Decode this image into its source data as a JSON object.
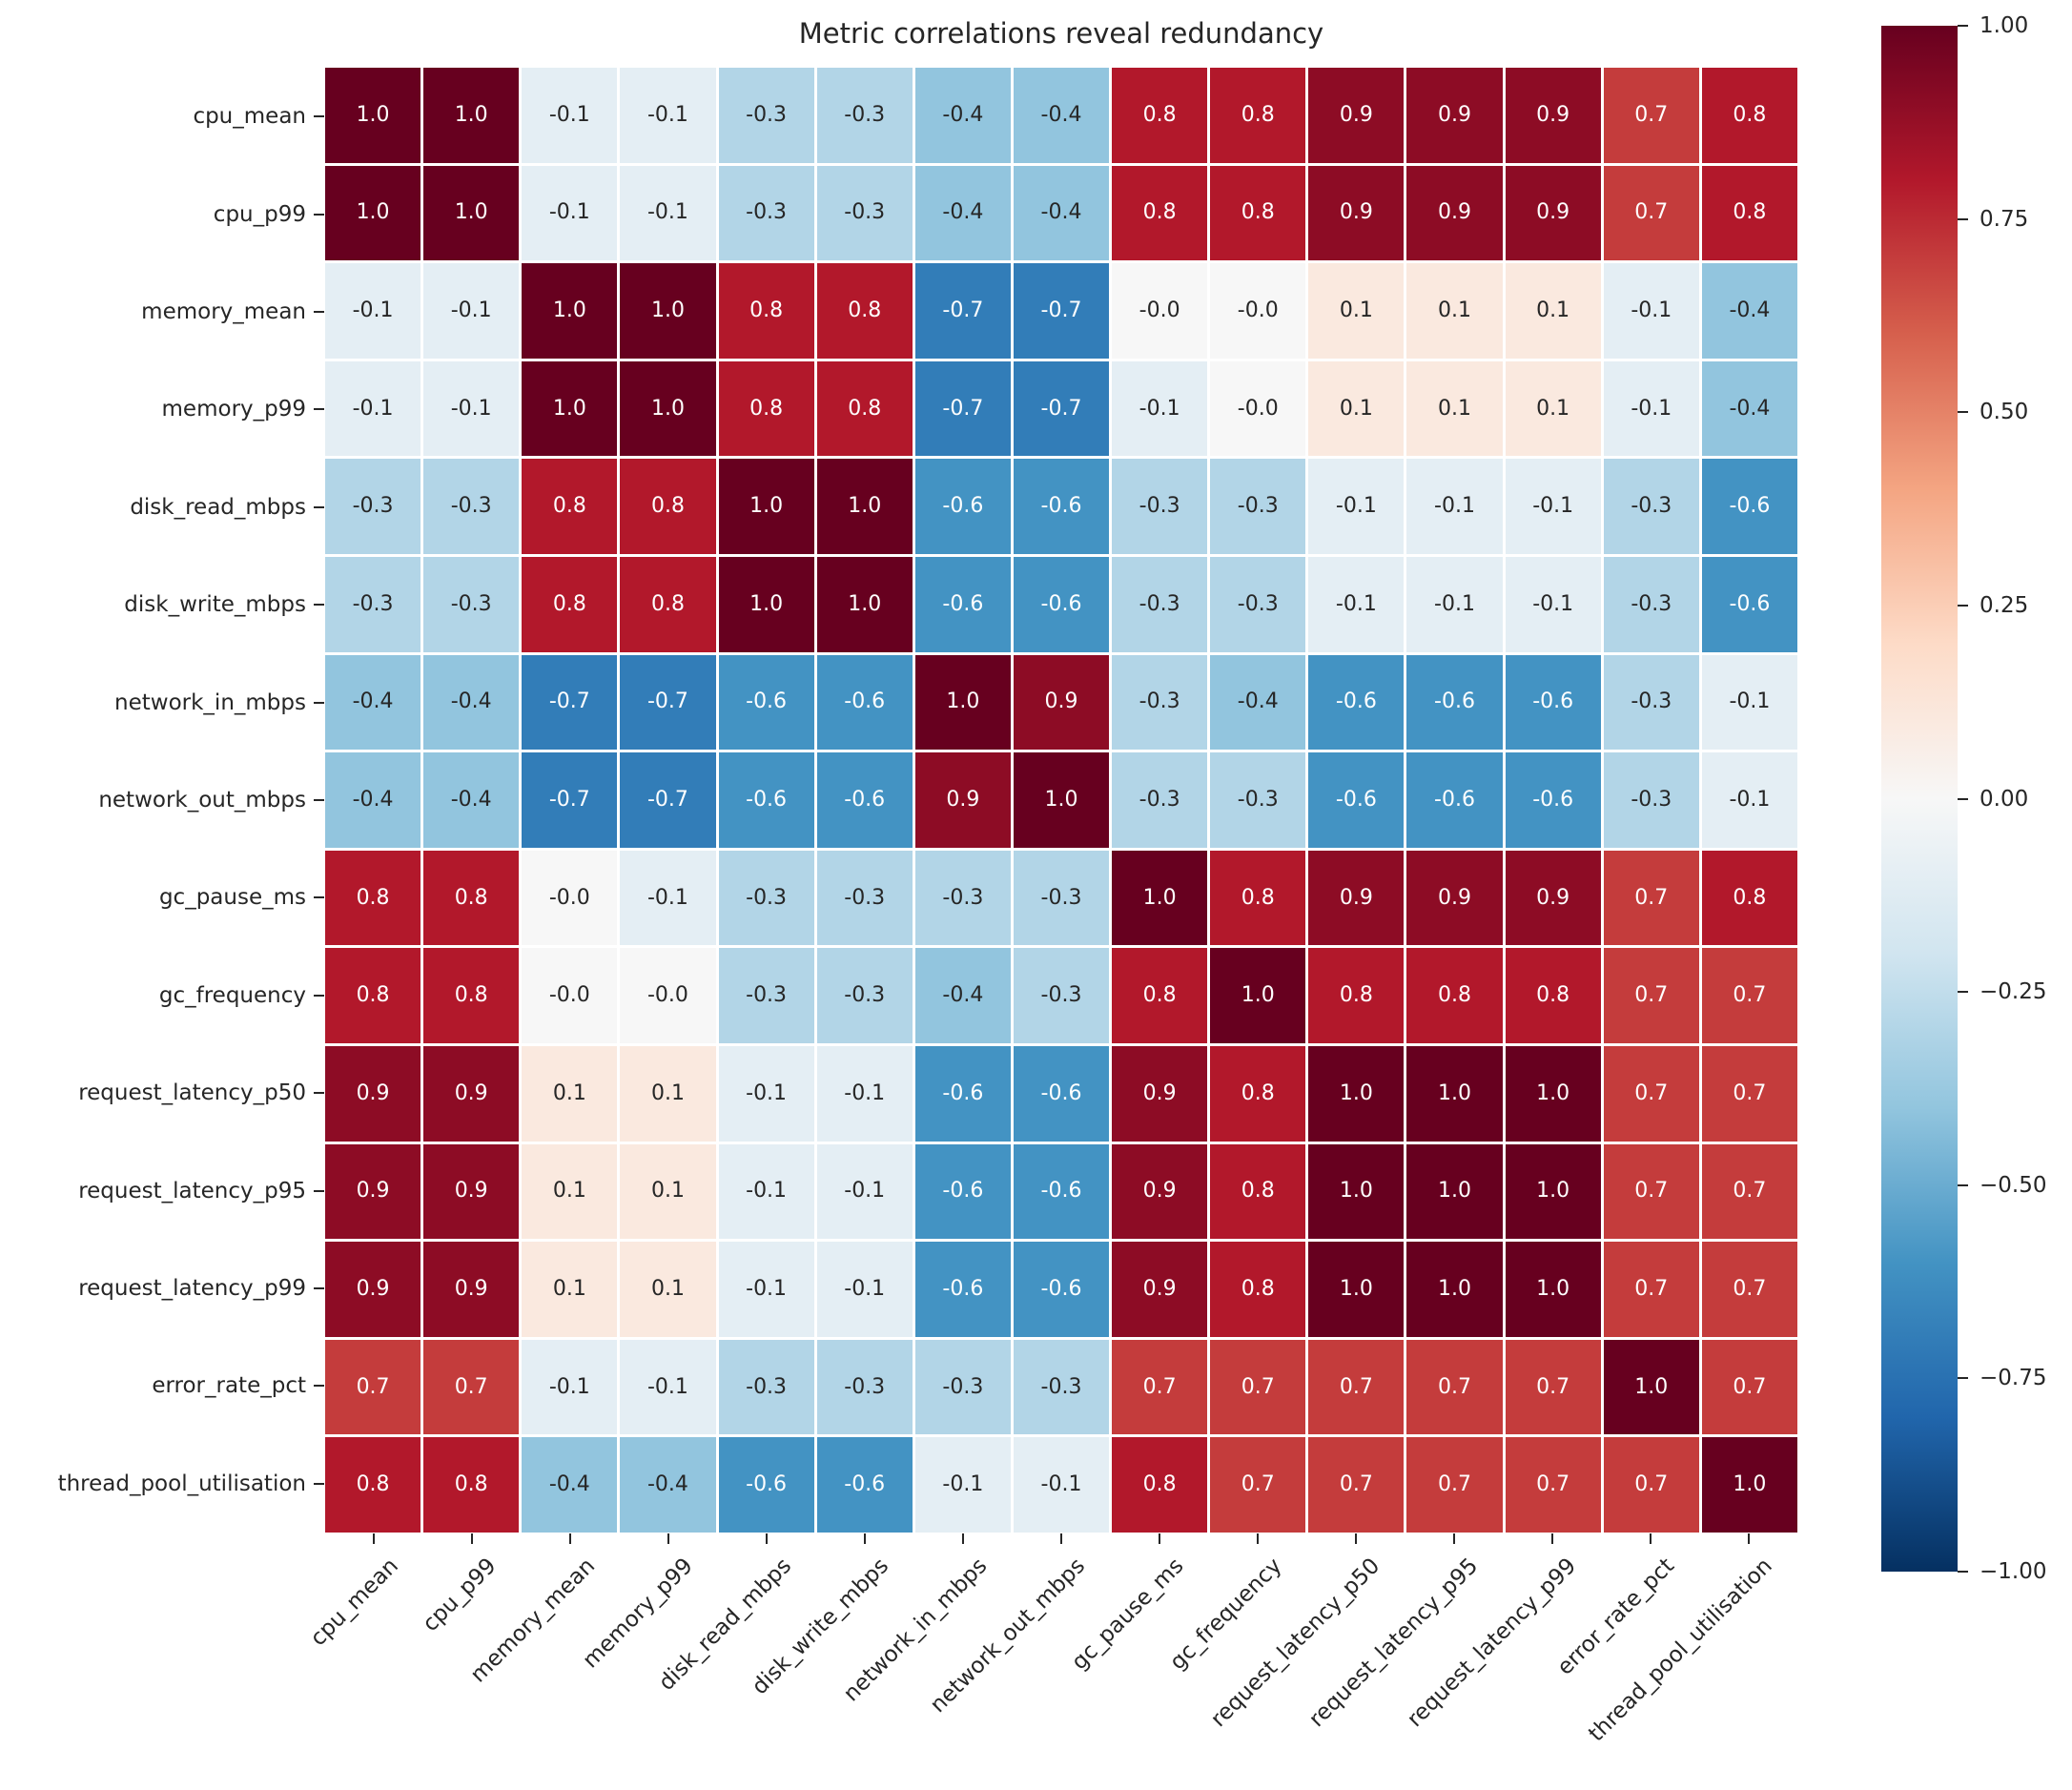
{
  "title": "Metric correlations reveal redundancy",
  "chart_data": {
    "type": "heatmap",
    "title": "Metric correlations reveal redundancy",
    "labels": [
      "cpu_mean",
      "cpu_p99",
      "memory_mean",
      "memory_p99",
      "disk_read_mbps",
      "disk_write_mbps",
      "network_in_mbps",
      "network_out_mbps",
      "gc_pause_ms",
      "gc_frequency",
      "request_latency_p50",
      "request_latency_p95",
      "request_latency_p99",
      "error_rate_pct",
      "thread_pool_utilisation"
    ],
    "matrix": [
      [
        "1.0",
        "1.0",
        "-0.1",
        "-0.1",
        "-0.3",
        "-0.3",
        "-0.4",
        "-0.4",
        "0.8",
        "0.8",
        "0.9",
        "0.9",
        "0.9",
        "0.7",
        "0.8"
      ],
      [
        "1.0",
        "1.0",
        "-0.1",
        "-0.1",
        "-0.3",
        "-0.3",
        "-0.4",
        "-0.4",
        "0.8",
        "0.8",
        "0.9",
        "0.9",
        "0.9",
        "0.7",
        "0.8"
      ],
      [
        "-0.1",
        "-0.1",
        "1.0",
        "1.0",
        "0.8",
        "0.8",
        "-0.7",
        "-0.7",
        "-0.0",
        "-0.0",
        "0.1",
        "0.1",
        "0.1",
        "-0.1",
        "-0.4"
      ],
      [
        "-0.1",
        "-0.1",
        "1.0",
        "1.0",
        "0.8",
        "0.8",
        "-0.7",
        "-0.7",
        "-0.1",
        "-0.0",
        "0.1",
        "0.1",
        "0.1",
        "-0.1",
        "-0.4"
      ],
      [
        "-0.3",
        "-0.3",
        "0.8",
        "0.8",
        "1.0",
        "1.0",
        "-0.6",
        "-0.6",
        "-0.3",
        "-0.3",
        "-0.1",
        "-0.1",
        "-0.1",
        "-0.3",
        "-0.6"
      ],
      [
        "-0.3",
        "-0.3",
        "0.8",
        "0.8",
        "1.0",
        "1.0",
        "-0.6",
        "-0.6",
        "-0.3",
        "-0.3",
        "-0.1",
        "-0.1",
        "-0.1",
        "-0.3",
        "-0.6"
      ],
      [
        "-0.4",
        "-0.4",
        "-0.7",
        "-0.7",
        "-0.6",
        "-0.6",
        "1.0",
        "0.9",
        "-0.3",
        "-0.4",
        "-0.6",
        "-0.6",
        "-0.6",
        "-0.3",
        "-0.1"
      ],
      [
        "-0.4",
        "-0.4",
        "-0.7",
        "-0.7",
        "-0.6",
        "-0.6",
        "0.9",
        "1.0",
        "-0.3",
        "-0.3",
        "-0.6",
        "-0.6",
        "-0.6",
        "-0.3",
        "-0.1"
      ],
      [
        "0.8",
        "0.8",
        "-0.0",
        "-0.1",
        "-0.3",
        "-0.3",
        "-0.3",
        "-0.3",
        "1.0",
        "0.8",
        "0.9",
        "0.9",
        "0.9",
        "0.7",
        "0.8"
      ],
      [
        "0.8",
        "0.8",
        "-0.0",
        "-0.0",
        "-0.3",
        "-0.3",
        "-0.4",
        "-0.3",
        "0.8",
        "1.0",
        "0.8",
        "0.8",
        "0.8",
        "0.7",
        "0.7"
      ],
      [
        "0.9",
        "0.9",
        "0.1",
        "0.1",
        "-0.1",
        "-0.1",
        "-0.6",
        "-0.6",
        "0.9",
        "0.8",
        "1.0",
        "1.0",
        "1.0",
        "0.7",
        "0.7"
      ],
      [
        "0.9",
        "0.9",
        "0.1",
        "0.1",
        "-0.1",
        "-0.1",
        "-0.6",
        "-0.6",
        "0.9",
        "0.8",
        "1.0",
        "1.0",
        "1.0",
        "0.7",
        "0.7"
      ],
      [
        "0.9",
        "0.9",
        "0.1",
        "0.1",
        "-0.1",
        "-0.1",
        "-0.6",
        "-0.6",
        "0.9",
        "0.8",
        "1.0",
        "1.0",
        "1.0",
        "0.7",
        "0.7"
      ],
      [
        "0.7",
        "0.7",
        "-0.1",
        "-0.1",
        "-0.3",
        "-0.3",
        "-0.3",
        "-0.3",
        "0.7",
        "0.7",
        "0.7",
        "0.7",
        "0.7",
        "1.0",
        "0.7"
      ],
      [
        "0.8",
        "0.8",
        "-0.4",
        "-0.4",
        "-0.6",
        "-0.6",
        "-0.1",
        "-0.1",
        "0.8",
        "0.7",
        "0.7",
        "0.7",
        "0.7",
        "0.7",
        "1.0"
      ]
    ],
    "vmin": -1,
    "vmax": 1,
    "colormap": "RdBu_r",
    "colormap_anchors_low_to_high": [
      "#053061",
      "#2166ac",
      "#4393c3",
      "#92c5de",
      "#d1e5f0",
      "#f7f7f7",
      "#fddbc7",
      "#f4a582",
      "#d6604d",
      "#b2182b",
      "#67001f"
    ],
    "colorbar_ticks": [
      {
        "label": "1.00",
        "value": 1.0
      },
      {
        "label": "0.75",
        "value": 0.75
      },
      {
        "label": "0.50",
        "value": 0.5
      },
      {
        "label": "0.25",
        "value": 0.25
      },
      {
        "label": "0.00",
        "value": 0.0
      },
      {
        "label": "−0.25",
        "value": -0.25
      },
      {
        "label": "−0.50",
        "value": -0.5
      },
      {
        "label": "−0.75",
        "value": -0.75
      },
      {
        "label": "−1.00",
        "value": -1.0
      }
    ],
    "annotation_text_colors": {
      "dark": "#262626",
      "light": "#ffffff"
    },
    "grid_line_color": "#ffffff",
    "legend_position": "right-colorbar",
    "grid": false
  }
}
